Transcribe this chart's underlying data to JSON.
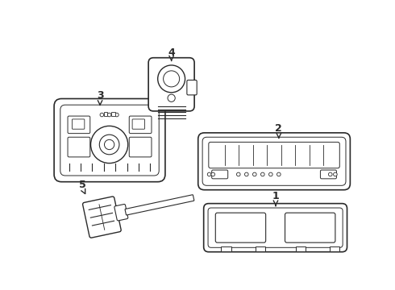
{
  "bg_color": "#ffffff",
  "line_color": "#2a2a2a",
  "line_width": 1.0
}
